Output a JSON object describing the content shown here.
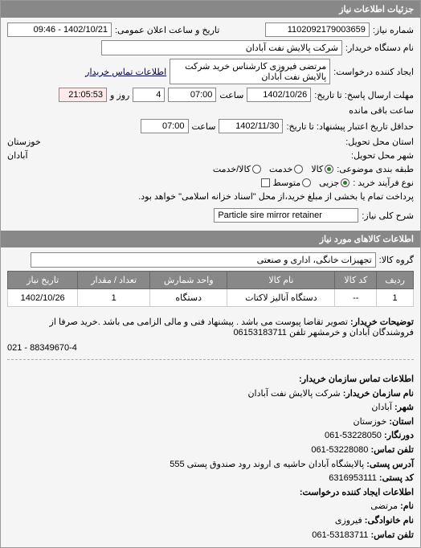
{
  "header": {
    "title": "جزئیات اطلاعات نیاز"
  },
  "form": {
    "req_no_label": "شماره نیاز:",
    "req_no": "1102092179003659",
    "announce_label": "تاریخ و ساعت اعلان عمومی:",
    "announce_value": "1402/10/21 - 09:46",
    "buyer_device_label": "نام دستگاه خریدار:",
    "buyer_device": "شرکت پالایش نفت آبادان",
    "creator_label": "ایجاد کننده درخواست:",
    "creator": "مرتضی فیروزی کارشناس خرید  شرکت پالایش نفت آبادان",
    "contact_link": "اطلاعات تماس خریدار",
    "deadline_label": "مهلت ارسال پاسخ: تا تاریخ:",
    "deadline_date": "1402/10/26",
    "time_label": "ساعت",
    "deadline_time": "07:00",
    "days_label": "روز و",
    "days_value": "4",
    "remaining_label": "ساعت باقی مانده",
    "remaining_time": "21:05:53",
    "valid_label": "حداقل تاریخ اعتبار پیشنهاد: تا تاریخ:",
    "valid_date": "1402/11/30",
    "valid_time": "07:00",
    "province_label": "استان محل تحویل:",
    "province": "خوزستان",
    "city_label": "شهر محل تحویل:",
    "city": "آبادان",
    "category_label": "طبقه بندی موضوعی:",
    "radio_goods": "کالا",
    "radio_service": "خدمت",
    "radio_both": "کالا/خدمت",
    "purchase_type_label": "نوع فرآیند خرید :",
    "radio_small": "متوسط",
    "radio_medium": "جزیی",
    "payment_note": "پرداخت تمام یا بخشی از مبلغ خرید،از محل \"اسناد خزانه اسلامی\" خواهد بود.",
    "desc_label": "شرح کلی نیاز:",
    "desc_value": "Particle sire mirror retainer"
  },
  "goods_header": "اطلاعات کالاهای مورد نیاز",
  "goods_group_label": "گروه کالا:",
  "goods_group": "تجهیزات خانگی، اداری و صنعتی",
  "table": {
    "columns": [
      "ردیف",
      "کد کالا",
      "نام کالا",
      "واحد شمارش",
      "تعداد / مقدار",
      "تاریخ نیاز"
    ],
    "rows": [
      [
        "1",
        "--",
        "دستگاه آنالیز لاکتات",
        "دستگاه",
        "1",
        "1402/10/26"
      ]
    ]
  },
  "buyer_notes_label": "توضیحات خریدار:",
  "buyer_notes": "تصویر تقاضا پیوست می باشد . پیشنهاد فنی و مالی الزامی می باشد .خرید صرفا از فروشندگان آبادان و خرمشهر تلفن 06153183711",
  "phone_line": "021 - 88349670-4",
  "contact_header": "اطلاعات تماس سازمان خریدار:",
  "info": {
    "org_label": "نام سازمان خریدار:",
    "org": "شرکت پالایش نفت آبادان",
    "city_label": "شهر:",
    "city": "آبادان",
    "province_label": "استان:",
    "province": "خوزستان",
    "fax_label": "دورنگار:",
    "fax": "061-53228050",
    "phone_label": "تلفن تماس:",
    "phone": "061-53228080",
    "address_label": "آدرس پستی:",
    "address": "پالایشگاه آبادان حاشیه ی اروند رود صندوق پستی 555",
    "postal_label": "کد پستی:",
    "postal": "6316953111",
    "req_creator_header": "اطلاعات ایجاد کننده درخواست:",
    "name_label": "نام:",
    "name": "مرتضی",
    "lastname_label": "نام خانوادگی:",
    "lastname": "فیروزی",
    "tel_label": "تلفن تماس:",
    "tel": "061-53183711"
  }
}
